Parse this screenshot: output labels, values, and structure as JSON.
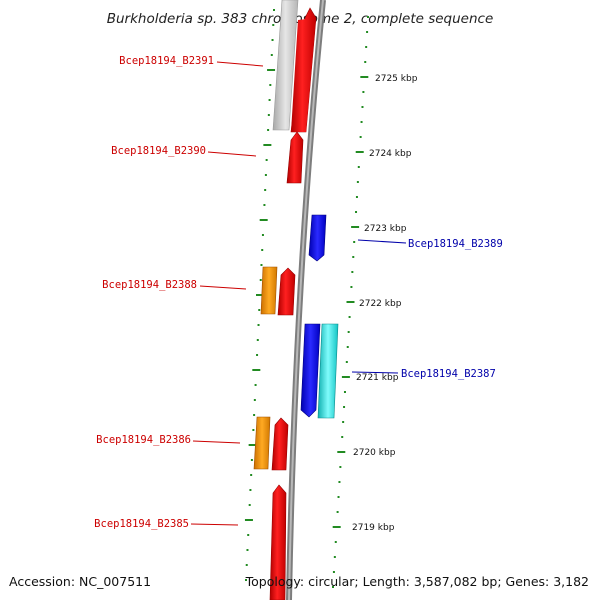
{
  "title": "Burkholderia sp. 383 chromosome 2, complete sequence",
  "footer": {
    "accession": "Accession: NC_007511",
    "topology": "Topology: circular; Length: 3,587,082 bp; Genes: 3,182"
  },
  "colors": {
    "forward_label": "#cc0000",
    "reverse_label": "#0000aa",
    "backbone": "#808080",
    "tick": "#228b22",
    "gene_red": "#ff1010",
    "gene_grey": "#cfcfcf",
    "gene_orange": "#ff9900",
    "gene_blue": "#1a1aff",
    "gene_cyan": "#19e0e0"
  },
  "scale": {
    "labels": [
      "2725 kbp",
      "2724 kbp",
      "2723 kbp",
      "2722 kbp",
      "2721 kbp",
      "2720 kbp",
      "2719 kbp"
    ]
  },
  "gene_labels": [
    {
      "text": "Bcep18194_B2391",
      "strand": "forward"
    },
    {
      "text": "Bcep18194_B2390",
      "strand": "forward"
    },
    {
      "text": "Bcep18194_B2389",
      "strand": "reverse"
    },
    {
      "text": "Bcep18194_B2388",
      "strand": "forward"
    },
    {
      "text": "Bcep18194_B2387",
      "strand": "reverse"
    },
    {
      "text": "Bcep18194_B2386",
      "strand": "forward"
    },
    {
      "text": "Bcep18194_B2385",
      "strand": "forward"
    }
  ]
}
